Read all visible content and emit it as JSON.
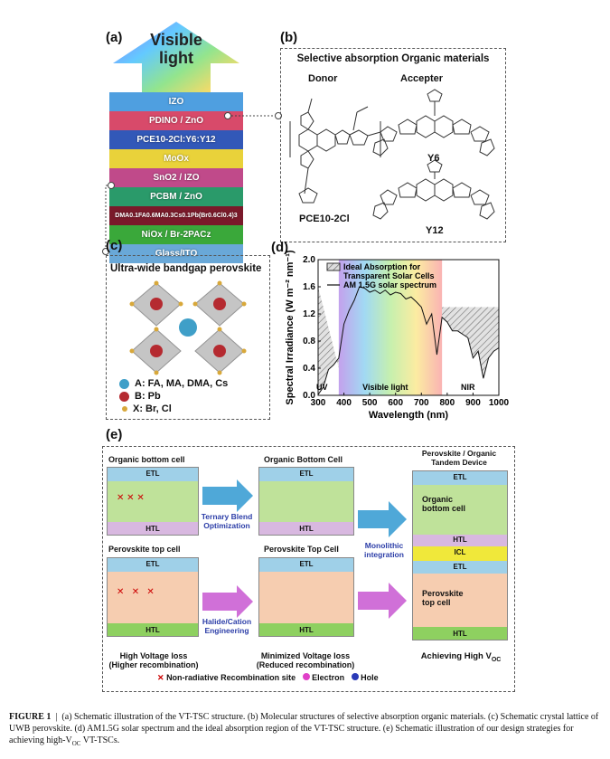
{
  "panel_a": {
    "label": "(a)",
    "arrow_title_1": "Visible",
    "arrow_title_2": "light",
    "layers": [
      {
        "name": "IZO",
        "color": "#4f9fe0"
      },
      {
        "name": "PDINO / ZnO",
        "color": "#d84a6a"
      },
      {
        "name": "PCE10-2Cl:Y6:Y12",
        "color": "#3258b8"
      },
      {
        "name": "MoOx",
        "color": "#e9d23a"
      },
      {
        "name": "SnO2 / IZO",
        "color": "#c04a8a"
      },
      {
        "name": "PCBM / ZnO",
        "color": "#2a9a6a"
      },
      {
        "name": "DMA0.1FA0.6MA0.3Cs0.1Pb(Br0.6Cl0.4)3",
        "color": "#7a1a2a"
      },
      {
        "name": "NiOx / Br-2PACz",
        "color": "#3aa83a"
      },
      {
        "name": "Glass/ITO",
        "color": "#69a8d8"
      }
    ]
  },
  "panel_b": {
    "label": "(b)",
    "title": "Selective absorption Organic materials",
    "donor_label": "Donor",
    "accepter_label": "Accepter",
    "donor_name": "PCE10-2Cl",
    "acc1_name": "Y6",
    "acc2_name": "Y12"
  },
  "panel_c": {
    "label": "(c)",
    "title": "Ultra-wide bandgap perovskite",
    "legend": [
      {
        "text": "A: FA, MA, DMA, Cs",
        "color": "#3f9fc8"
      },
      {
        "text": "B: Pb",
        "color": "#b52a30"
      },
      {
        "text": "X: Br, Cl",
        "color": "#d8a83a"
      }
    ]
  },
  "panel_d": {
    "label": "(d)",
    "legend_1": "Ideal Absorption for",
    "legend_1b": "Transparent Solar Cells",
    "legend_2": "AM 1.5G solar spectrum",
    "band_uv": "UV",
    "band_vis": "Visible light",
    "band_nir": "NIR"
  },
  "chart_data": {
    "type": "line",
    "xlabel": "Wavelength (nm)",
    "ylabel": "Spectral Irradiance (W m⁻² nm⁻¹)",
    "xlim": [
      300,
      1000
    ],
    "ylim": [
      0.0,
      2.0
    ],
    "xticks": [
      "300",
      "400",
      "500",
      "600",
      "700",
      "800",
      "900",
      "1000"
    ],
    "yticks": [
      "0.0",
      "0.4",
      "0.8",
      "1.2",
      "1.6",
      "2.0"
    ],
    "series": [
      {
        "name": "AM 1.5G solar spectrum",
        "x": [
          300,
          320,
          340,
          360,
          380,
          400,
          420,
          440,
          460,
          480,
          500,
          520,
          540,
          560,
          580,
          600,
          620,
          640,
          660,
          680,
          700,
          720,
          740,
          760,
          780,
          800,
          820,
          840,
          860,
          880,
          900,
          920,
          940,
          960,
          980,
          1000
        ],
        "y": [
          0.01,
          0.12,
          0.38,
          0.45,
          0.55,
          1.05,
          1.25,
          1.4,
          1.6,
          1.58,
          1.52,
          1.55,
          1.5,
          1.55,
          1.48,
          1.52,
          1.5,
          1.42,
          1.45,
          1.38,
          1.3,
          1.05,
          1.2,
          0.6,
          1.15,
          1.08,
          0.95,
          0.95,
          0.9,
          0.85,
          0.55,
          0.65,
          0.25,
          0.55,
          0.65,
          0.7
        ]
      }
    ],
    "ideal_absorption_ranges": [
      [
        300,
        380
      ],
      [
        780,
        1000
      ]
    ]
  },
  "panel_e": {
    "label": "(e)",
    "organic_bottom_title": "Organic bottom cell",
    "organic_bottom_title2": "Organic Bottom Cell",
    "perov_top_title": "Perovskite top cell",
    "perov_top_title2": "Perovskite Top Cell",
    "tandem_title": "Perovskite / Organic\nTandem Device",
    "etl": "ETL",
    "htl": "HTL",
    "icl": "ICL",
    "organic_text": "Organic\nbottom cell",
    "perov_text": "Perovskite\ntop cell",
    "arrow1": "Ternary Blend\nOptimization",
    "arrow2": "Halide/Cation\nEngineering",
    "arrow3": "Monolithic\nintegration",
    "loss_high": "High Voltage loss\n(Higher recombination)",
    "loss_min": "Minimized Voltage loss\n(Reduced recombination)",
    "achieve": "Achieving High V",
    "achieve_sub": "OC",
    "legend_x": "Non-radiative Recombination site",
    "legend_e": "Electron",
    "legend_h": "Hole"
  },
  "caption": {
    "figure": "FIGURE 1",
    "text": "(a) Schematic illustration of the VT-TSC structure. (b) Molecular structures of selective absorption organic materials. (c) Schematic crystal lattice of UWB perovskite. (d) AM1.5G solar spectrum and the ideal absorption region of the VT-TSC structure. (e) Schematic illustration of our design strategies for achieving high-V",
    "text_sub": "OC",
    "text_end": " VT-TSCs."
  }
}
